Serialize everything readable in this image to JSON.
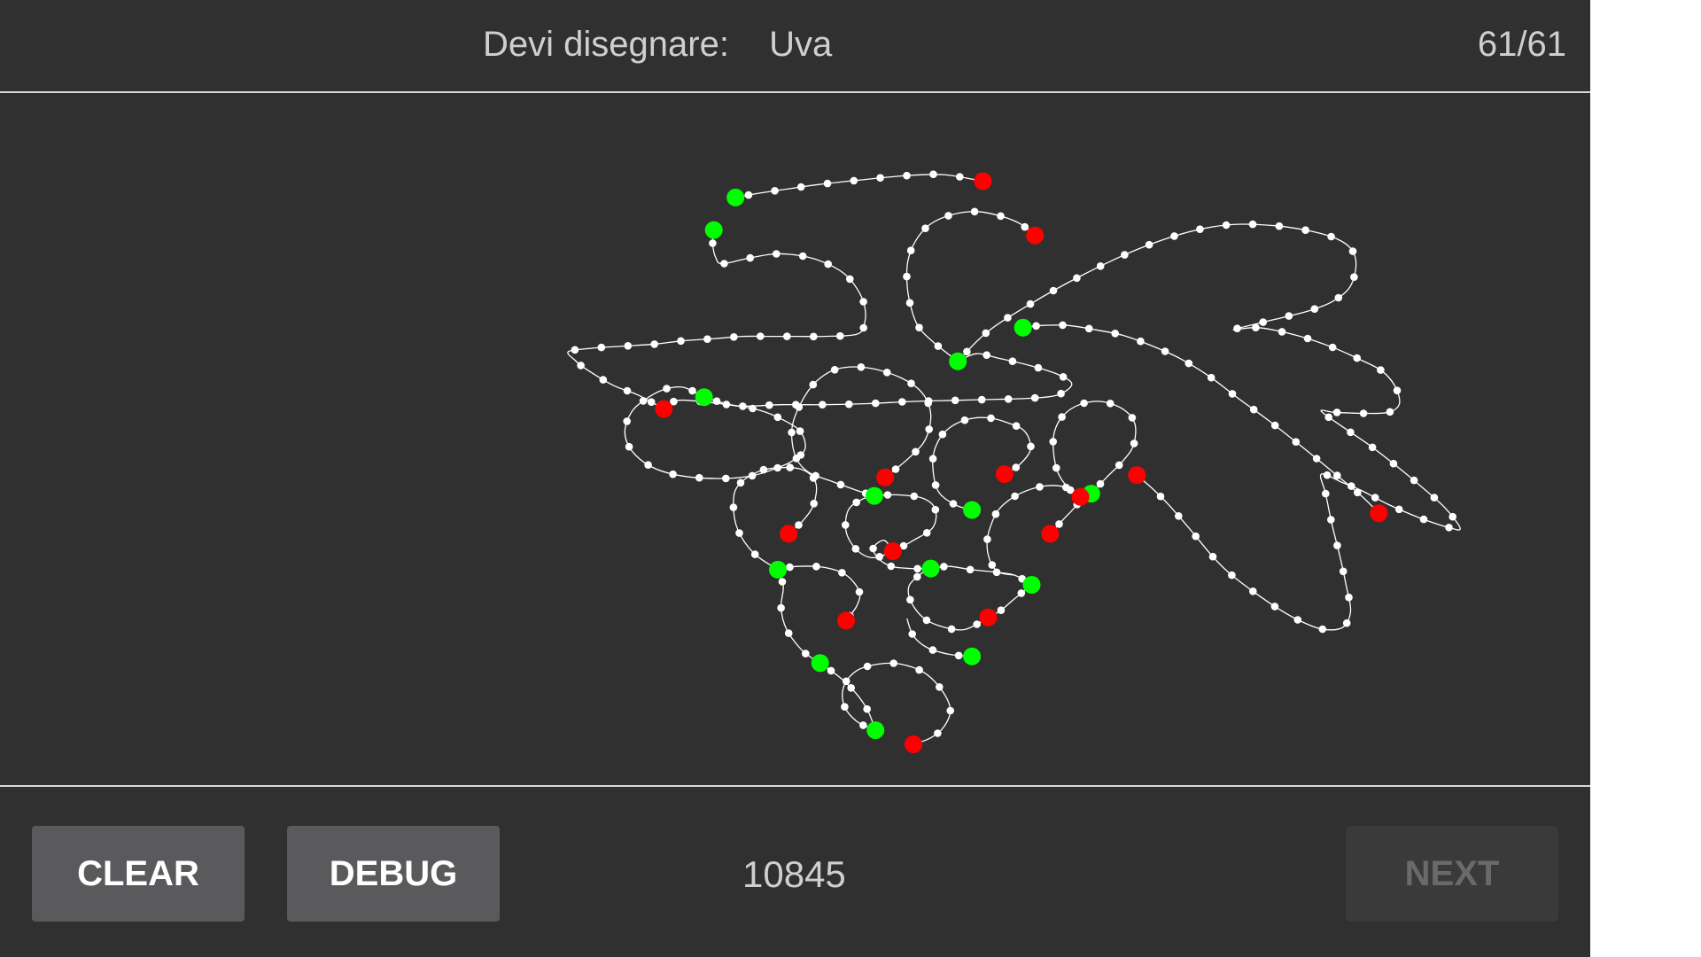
{
  "header": {
    "prompt_label": "Devi disegnare:",
    "word": "Uva",
    "progress": "61/61"
  },
  "footer": {
    "clear_label": "CLEAR",
    "debug_label": "DEBUG",
    "score": "10845",
    "next_label": "NEXT",
    "next_enabled": false
  },
  "drawing": {
    "point_color": "#ffffff",
    "stroke_color": "#ffffff",
    "start_color": "#00ff00",
    "end_color": "#ff0000"
  }
}
